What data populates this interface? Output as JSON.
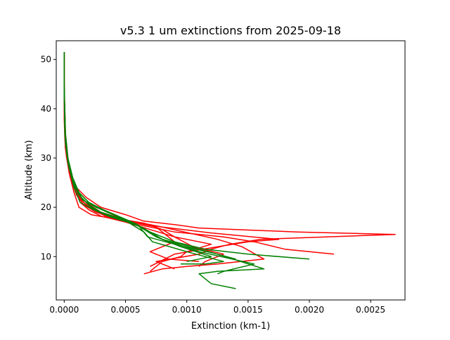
{
  "chart_data": {
    "type": "line",
    "title": "v5.3 1 um extinctions from 2025-09-18",
    "xlabel": "Extinction (km-1)",
    "ylabel": "Altitude (km)",
    "xlim": [
      -6.5e-05,
      0.00278
    ],
    "ylim": [
      1.2,
      53.8
    ],
    "xticks": [
      0.0,
      0.0005,
      0.001,
      0.0015,
      0.002,
      0.0025
    ],
    "xtick_labels": [
      "0.0000",
      "0.0005",
      "0.0010",
      "0.0015",
      "0.0020",
      "0.0025"
    ],
    "yticks": [
      10,
      20,
      30,
      40,
      50
    ],
    "ytick_labels": [
      "10",
      "20",
      "30",
      "40",
      "50"
    ],
    "grid": false,
    "colors": {
      "red": "#ff0000",
      "green": "#008000"
    },
    "series": [
      {
        "color": "#ff0000",
        "x": [
          0.0,
          0.0,
          0.0,
          5e-06,
          1e-05,
          2e-05,
          4e-05,
          6e-05,
          0.0001,
          0.00018,
          0.0003,
          0.0005,
          0.00065,
          0.0009,
          0.0011,
          0.0019,
          0.0027,
          0.0016,
          0.00135,
          0.0012,
          0.0011,
          0.00075,
          0.0009
        ],
        "y": [
          51.5,
          45,
          38,
          34,
          32,
          30,
          28,
          26,
          24,
          22,
          20,
          18.5,
          17.2,
          16.5,
          15.8,
          15.0,
          14.5,
          13.5,
          12.5,
          11.5,
          10.5,
          9,
          7.5
        ]
      },
      {
        "color": "#ff0000",
        "x": [
          0.0,
          0.0,
          5e-06,
          1e-05,
          3e-05,
          6e-05,
          0.0001,
          0.00016,
          0.00024,
          0.00035,
          0.0006,
          0.0008,
          0.0012,
          0.00175,
          0.0015,
          0.00125,
          0.0009,
          0.0007
        ],
        "y": [
          51.5,
          44,
          36,
          32,
          29,
          26,
          23,
          21,
          19.5,
          18,
          17,
          16,
          14.8,
          13.5,
          13,
          12,
          10.5,
          8
        ]
      },
      {
        "color": "#ff0000",
        "x": [
          0.0,
          0.0,
          1e-05,
          3e-05,
          6e-05,
          0.0001,
          0.00018,
          0.0003,
          0.0005,
          0.0006,
          0.0009,
          0.0013,
          0.00155,
          0.0018,
          0.0022
        ],
        "y": [
          51.5,
          45,
          35,
          30,
          26,
          23,
          21,
          19,
          17.5,
          16.5,
          15,
          14,
          13,
          11.5,
          10.5
        ]
      },
      {
        "color": "#ff0000",
        "x": [
          0.0,
          0.0,
          8e-06,
          3e-05,
          7e-05,
          0.00012,
          0.0002,
          0.00035,
          0.0005,
          0.0008,
          0.00125,
          0.00145,
          0.00163,
          0.00125,
          0.001,
          0.0008,
          0.00065
        ],
        "y": [
          51.5,
          44,
          34,
          29,
          25,
          22,
          20,
          18.5,
          17.2,
          16,
          13.5,
          12,
          9.5,
          8.5,
          8,
          7.5,
          6.5
        ]
      },
      {
        "color": "#ff0000",
        "x": [
          0.0,
          0.0,
          1e-05,
          4e-05,
          8e-05,
          0.00013,
          0.0002,
          0.0003,
          0.0005,
          0.0007,
          0.0009,
          0.0012,
          0.001,
          0.00095,
          0.0008,
          0.0007
        ],
        "y": [
          51.5,
          44,
          33,
          28,
          24,
          21,
          19.5,
          18.2,
          17,
          15.5,
          14,
          12.5,
          11,
          10,
          9,
          7
        ]
      },
      {
        "color": "#ff0000",
        "x": [
          0.0,
          0.0,
          5e-06,
          2e-05,
          5e-05,
          0.0001,
          0.00016,
          0.00026,
          0.0004,
          0.00065,
          0.0008,
          0.0009,
          0.00105,
          0.0013,
          0.00115,
          0.0011
        ],
        "y": [
          51.5,
          43,
          35,
          30,
          26,
          22.5,
          20.5,
          19,
          17.8,
          16.8,
          15.5,
          14,
          12,
          10.5,
          9,
          8
        ]
      },
      {
        "color": "#ff0000",
        "x": [
          0.0,
          0.0,
          1e-05,
          4e-05,
          8e-05,
          0.00012,
          0.00022,
          0.00045,
          0.00075,
          0.0009,
          0.0007,
          0.00085,
          0.0011
        ],
        "y": [
          51.5,
          44,
          32,
          27,
          23,
          20,
          18.5,
          17.5,
          16,
          13,
          11,
          9.5,
          9
        ]
      },
      {
        "color": "#008000",
        "x": [
          0.0,
          0.0,
          5e-06,
          2e-05,
          6e-05,
          0.00012,
          0.0002,
          0.0003,
          0.00042,
          0.00055,
          0.0007,
          0.0009,
          0.00115,
          0.0015,
          0.002
        ],
        "y": [
          51.5,
          44,
          36,
          31,
          26,
          22.5,
          20.5,
          19,
          18,
          17,
          15,
          13,
          11.5,
          10.5,
          9.5
        ]
      },
      {
        "color": "#008000",
        "x": [
          0.0,
          0.0,
          1e-05,
          3e-05,
          7e-05,
          0.00012,
          0.0002,
          0.00032,
          0.00046,
          0.0006,
          0.00068,
          0.0009,
          0.00125,
          0.00163,
          0.00125,
          0.0011,
          0.0012,
          0.0014
        ],
        "y": [
          51.5,
          44,
          35,
          30,
          26,
          23,
          21,
          19.5,
          18,
          16.5,
          14,
          12.5,
          10.5,
          7.5,
          7,
          6.5,
          4.5,
          3.5
        ]
      },
      {
        "color": "#008000",
        "x": [
          0.0,
          0.0,
          8e-06,
          3e-05,
          8e-05,
          0.00014,
          0.00022,
          0.00034,
          0.0005,
          0.00063,
          0.0008,
          0.0011,
          0.00155,
          0.0013,
          0.00125
        ],
        "y": [
          51.5,
          45,
          34,
          29,
          25,
          22,
          20,
          18.5,
          17.2,
          16,
          13.5,
          11,
          8.5,
          7,
          6.5
        ]
      },
      {
        "color": "#008000",
        "x": [
          0.0,
          0.0,
          1e-05,
          4e-05,
          8e-05,
          0.00013,
          0.00024,
          0.00038,
          0.00052,
          0.00065,
          0.00072,
          0.001,
          0.0013,
          0.00115,
          0.00095
        ],
        "y": [
          51.5,
          44,
          33,
          28,
          24,
          21,
          19.5,
          18,
          17,
          15,
          13,
          11,
          9,
          8.5,
          8.5
        ]
      },
      {
        "color": "#008000",
        "x": [
          0.0,
          0.0,
          5e-06,
          2e-05,
          6e-05,
          0.00012,
          0.0002,
          0.00035,
          0.0005,
          0.00062,
          0.00075,
          0.00095,
          0.0012,
          0.001
        ],
        "y": [
          51.5,
          43,
          35,
          31,
          26,
          23,
          21,
          19,
          17.5,
          16,
          14,
          12,
          10,
          9
        ]
      },
      {
        "color": "#008000",
        "x": [
          0.0,
          0.0,
          1e-05,
          4e-05,
          9e-05,
          0.00015,
          0.00026,
          0.0004,
          0.00055,
          0.00066,
          0.0008,
          0.0011,
          0.0014
        ],
        "y": [
          51.5,
          44,
          34,
          28,
          24,
          21.5,
          20,
          18.5,
          17,
          15.5,
          13.5,
          11.5,
          9.5
        ]
      }
    ]
  }
}
